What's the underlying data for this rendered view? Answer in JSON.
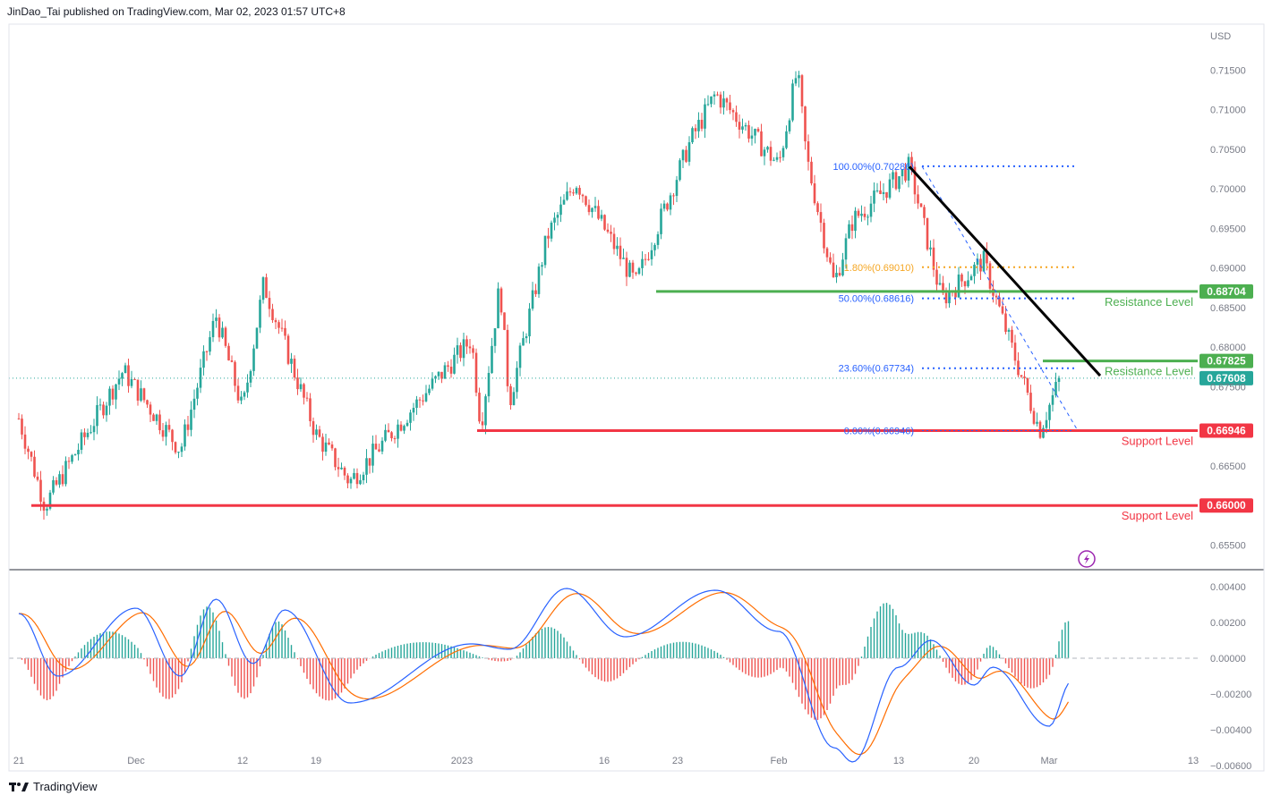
{
  "header": {
    "published_text": "JinDao_Tai published on TradingView.com, Mar 02, 2023 01:57 UTC+8"
  },
  "footer": {
    "brand": "TradingView"
  },
  "colors": {
    "up": "#26a69a",
    "down": "#ef5350",
    "support": "#f23645",
    "resistance": "#4caf50",
    "trend": "#000000",
    "fib_blue": "#2962ff",
    "fib_gold": "#f5a623",
    "macd": "#2962ff",
    "signal": "#ff6d00",
    "hist_up": "#26a69a",
    "hist_down": "#ef5350"
  },
  "chart_data": [
    {
      "type": "candlestick",
      "currency": "USD",
      "xaxis": {
        "tick_labels": [
          "21",
          "Dec",
          "12",
          "19",
          "2023",
          "16",
          "23",
          "Feb",
          "13",
          "20",
          "Mar",
          "13"
        ]
      },
      "yaxis": {
        "range": [
          0.652,
          0.7207
        ],
        "tick_labels": [
          "0.71500",
          "0.71000",
          "0.70500",
          "0.70000",
          "0.69500",
          "0.69000",
          "0.68500",
          "0.68000",
          "0.67500",
          "0.66500",
          "0.65500"
        ]
      },
      "last_price": 0.67608,
      "key_points": [
        {
          "date": "Nov 21",
          "price": 0.671
        },
        {
          "date": "Nov 23",
          "price": 0.66
        },
        {
          "date": "Nov 29",
          "price": 0.677
        },
        {
          "date": "Dec 5",
          "price": 0.667
        },
        {
          "date": "Dec 9",
          "price": 0.684
        },
        {
          "date": "Dec 12",
          "price": 0.672
        },
        {
          "date": "Dec 14",
          "price": 0.688
        },
        {
          "date": "Dec 19",
          "price": 0.669
        },
        {
          "date": "Dec 22",
          "price": 0.663
        },
        {
          "date": "Jan 2",
          "price": 0.681
        },
        {
          "date": "Jan 3",
          "price": 0.67
        },
        {
          "date": "Jan 5",
          "price": 0.688
        },
        {
          "date": "Jan 6",
          "price": 0.673
        },
        {
          "date": "Jan 10",
          "price": 0.694
        },
        {
          "date": "Jan 13",
          "price": 0.701
        },
        {
          "date": "Jan 16",
          "price": 0.695
        },
        {
          "date": "Jan 19",
          "price": 0.688
        },
        {
          "date": "Jan 24",
          "price": 0.706
        },
        {
          "date": "Jan 26",
          "price": 0.712
        },
        {
          "date": "Jan 31",
          "price": 0.703
        },
        {
          "date": "Feb 2",
          "price": 0.715
        },
        {
          "date": "Feb 3",
          "price": 0.704
        },
        {
          "date": "Feb 6",
          "price": 0.688
        },
        {
          "date": "Feb 8",
          "price": 0.696
        },
        {
          "date": "Feb 14",
          "price": 0.7028
        },
        {
          "date": "Feb 17",
          "price": 0.686
        },
        {
          "date": "Feb 21",
          "price": 0.691
        },
        {
          "date": "Feb 24",
          "price": 0.68
        },
        {
          "date": "Feb 27",
          "price": 0.6695
        },
        {
          "date": "Mar 1",
          "price": 0.6761
        }
      ],
      "levels": [
        {
          "name": "Resistance Level",
          "value": 0.68704,
          "tag": "0.68704",
          "kind": "resistance"
        },
        {
          "name": "Resistance Level",
          "value": 0.67825,
          "tag": "0.67825",
          "kind": "resistance"
        },
        {
          "name": "Support Level",
          "value": 0.66946,
          "tag": "0.66946",
          "kind": "support"
        },
        {
          "name": "Support Level",
          "value": 0.66,
          "tag": "0.66000",
          "kind": "support"
        }
      ],
      "last_price_tag": "0.67608",
      "fibonacci": [
        {
          "label": "100.00%(0.70286)",
          "value": 0.70286
        },
        {
          "label": "(0.69010)",
          "value": 0.6901,
          "prefix": "1.80%"
        },
        {
          "label": "50.00%(0.68616)",
          "value": 0.68616
        },
        {
          "label": "23.60%(0.67734)",
          "value": 0.67734
        },
        {
          "label": "0.00%(0.66946)",
          "value": 0.66946
        }
      ],
      "trendline": {
        "from": {
          "date": "Feb 14",
          "price": 0.7028
        },
        "to": {
          "date": "Mar 2",
          "price": 0.6764
        }
      }
    },
    {
      "type": "macd",
      "yaxis": {
        "range": [
          -0.0062,
          0.0048
        ],
        "tick_labels": [
          "0.00400",
          "0.00200",
          "0.00000",
          "−0.00200",
          "−0.00400",
          "−0.00600"
        ]
      },
      "key_points": [
        {
          "date": "Nov 21",
          "macd": 0.0025
        },
        {
          "date": "Nov 24",
          "macd": -0.001
        },
        {
          "date": "Nov 30",
          "macd": 0.0028
        },
        {
          "date": "Dec 5",
          "macd": -0.001
        },
        {
          "date": "Dec 9",
          "macd": 0.0033
        },
        {
          "date": "Dec 13",
          "macd": -0.0003
        },
        {
          "date": "Dec 16",
          "macd": 0.0027
        },
        {
          "date": "Dec 22",
          "macd": -0.0025
        },
        {
          "date": "Jan 2",
          "macd": 0.0008
        },
        {
          "date": "Jan 6",
          "macd": 0.0005
        },
        {
          "date": "Jan 12",
          "macd": 0.0039
        },
        {
          "date": "Jan 18",
          "macd": 0.0012
        },
        {
          "date": "Jan 26",
          "macd": 0.0038
        },
        {
          "date": "Jan 31",
          "macd": 0.0015
        },
        {
          "date": "Feb 6",
          "macd": -0.005
        },
        {
          "date": "Feb 8",
          "macd": -0.0058
        },
        {
          "date": "Feb 13",
          "macd": -0.0005
        },
        {
          "date": "Feb 16",
          "macd": 0.001
        },
        {
          "date": "Feb 20",
          "macd": -0.0015
        },
        {
          "date": "Feb 22",
          "macd": -0.0005
        },
        {
          "date": "Feb 28",
          "macd": -0.0038
        },
        {
          "date": "Mar 2",
          "macd": -0.0013
        }
      ]
    }
  ]
}
